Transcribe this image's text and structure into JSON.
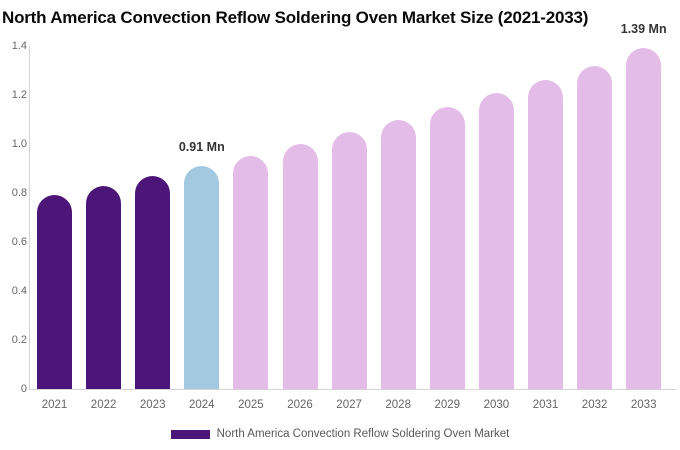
{
  "title": "North America Convection Reflow Soldering Oven Market Size (2021-2033)",
  "chart_data": {
    "type": "bar",
    "title": "North America Convection Reflow Soldering Oven Market Size (2021-2033)",
    "categories": [
      "2021",
      "2022",
      "2023",
      "2024",
      "2025",
      "2026",
      "2027",
      "2028",
      "2029",
      "2030",
      "2031",
      "2032",
      "2033"
    ],
    "values": [
      0.79,
      0.83,
      0.87,
      0.91,
      0.95,
      1.0,
      1.05,
      1.1,
      1.15,
      1.21,
      1.26,
      1.32,
      1.39
    ],
    "unit": "Mn",
    "bar_colors": [
      "#4b1678",
      "#4b1678",
      "#4b1678",
      "#a3c9e0",
      "#e4bce8",
      "#e4bce8",
      "#e4bce8",
      "#e4bce8",
      "#e4bce8",
      "#e4bce8",
      "#e4bce8",
      "#e4bce8",
      "#e4bce8"
    ],
    "ylim": [
      0,
      1.4
    ],
    "ytick_labels": [
      "0",
      "0.2",
      "0.4",
      "0.6",
      "0.8",
      "1.0",
      "1.2",
      "1.4"
    ],
    "grid": false,
    "xlabel": "",
    "ylabel": "",
    "annotations": [
      {
        "category": "2024",
        "text": "0.91 Mn"
      },
      {
        "category": "2033",
        "text": "1.39 Mn"
      }
    ],
    "legend": {
      "position": "bottom",
      "label": "North America Convection Reflow Soldering Oven Market",
      "swatch_color": "#4b1678"
    },
    "colors": {
      "historical_bar": "#4b1678",
      "current_year_bar": "#a3c9e0",
      "forecast_bar": "#e4bce8",
      "axis_line": "#d4d4d4",
      "tick_text": "#666666",
      "annotation_text": "#333333",
      "legend_text": "#595959",
      "title_text": "#0a0a0a"
    }
  }
}
